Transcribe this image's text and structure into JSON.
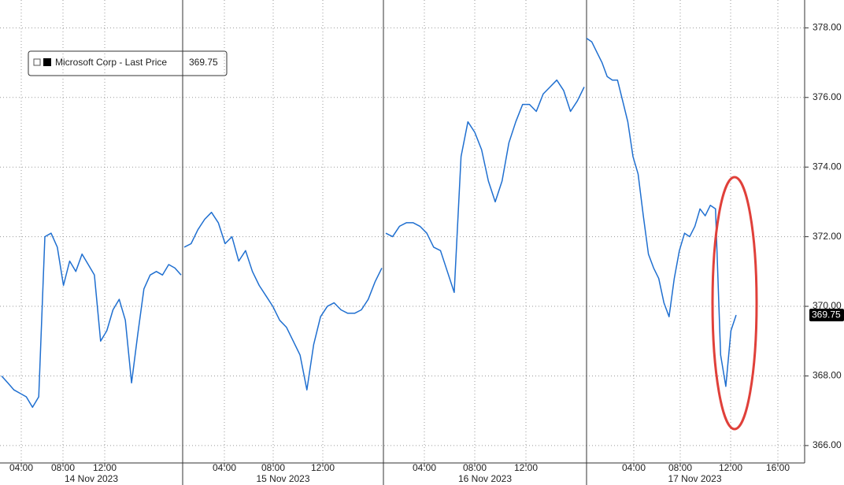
{
  "chart_data": {
    "type": "line",
    "series_name": "Microsoft Corp - Last Price",
    "last_price": 369.75,
    "color": "#1f6fd0",
    "days": [
      {
        "label": "14 Nov 2023",
        "x_ticks": [
          "04:00",
          "08:00",
          "12:00"
        ],
        "values": [
          368.0,
          367.8,
          367.6,
          367.5,
          367.4,
          367.1,
          367.4,
          372.0,
          372.1,
          371.7,
          370.6,
          371.3,
          371.0,
          371.5,
          371.2,
          370.9,
          369.0,
          369.3,
          369.9,
          370.2,
          369.6,
          367.8,
          369.2,
          370.5,
          370.9,
          371.0,
          370.9,
          371.2,
          371.1,
          370.9
        ]
      },
      {
        "label": "15 Nov 2023",
        "x_ticks": [
          "04:00",
          "08:00",
          "12:00"
        ],
        "values": [
          371.7,
          371.8,
          372.2,
          372.5,
          372.7,
          372.4,
          371.8,
          372.0,
          371.3,
          371.6,
          371.0,
          370.6,
          370.3,
          370.0,
          369.6,
          369.4,
          369.0,
          368.6,
          367.6,
          368.9,
          369.7,
          370.0,
          370.1,
          369.9,
          369.8,
          369.8,
          369.9,
          370.2,
          370.7,
          371.1
        ]
      },
      {
        "label": "16 Nov 2023",
        "x_ticks": [
          "04:00",
          "08:00",
          "12:00"
        ],
        "values": [
          372.1,
          372.0,
          372.3,
          372.4,
          372.4,
          372.3,
          372.1,
          371.7,
          371.6,
          371.0,
          370.4,
          374.3,
          375.3,
          375.0,
          374.5,
          373.6,
          373.0,
          373.6,
          374.7,
          375.3,
          375.8,
          375.8,
          375.6,
          376.1,
          376.3,
          376.5,
          376.2,
          375.6,
          375.9,
          376.3
        ]
      },
      {
        "label": "17 Nov 2023",
        "x_ticks": [
          "04:00",
          "08:00",
          "12:00",
          "16:00"
        ],
        "values": [
          377.7,
          377.6,
          377.3,
          377.0,
          376.6,
          376.5,
          376.5,
          375.9,
          375.3,
          374.3,
          373.8,
          372.6,
          371.5,
          371.1,
          370.8,
          370.1,
          369.7,
          370.8,
          371.6,
          372.1,
          372.0,
          372.3,
          372.8,
          372.6,
          372.9,
          372.8,
          368.6,
          367.7,
          369.3,
          369.75
        ]
      }
    ],
    "ylim": [
      365.5,
      378.8
    ],
    "yticks": [
      {
        "value": 366,
        "label": "366.00"
      },
      {
        "value": 368,
        "label": "368.00"
      },
      {
        "value": 370,
        "label": "370.00"
      },
      {
        "value": 372,
        "label": "372.00"
      },
      {
        "value": 374,
        "label": "374.00"
      },
      {
        "value": 376,
        "label": "376.00"
      },
      {
        "value": 378,
        "label": "378.00"
      }
    ],
    "grid": true
  }
}
